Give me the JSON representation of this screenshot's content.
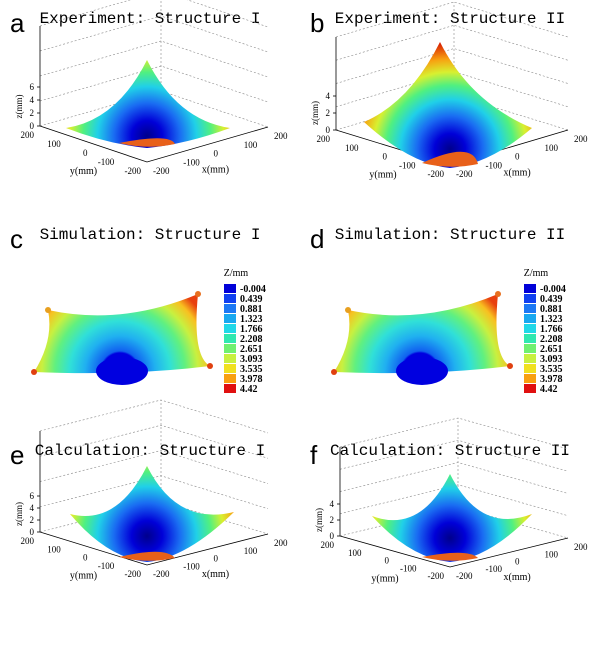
{
  "figure": {
    "panels": [
      {
        "letter": "a",
        "title": "Experiment: Structure I",
        "kind": "plot3d",
        "zlabel": "z(mm)",
        "ylabel": "y(mm)",
        "xlabel": "x(mm)",
        "zticks": [
          "0",
          "2",
          "4",
          "6"
        ],
        "yticks": [
          "200",
          "100",
          "0",
          "-100",
          "-200"
        ],
        "xticks": [
          "-200",
          "-100",
          "0",
          "100",
          "200"
        ]
      },
      {
        "letter": "b",
        "title": "Experiment: Structure II",
        "kind": "plot3d",
        "zlabel": "z(mm)",
        "ylabel": "y(mm)",
        "xlabel": "x(mm)",
        "zticks": [
          "0",
          "2",
          "4"
        ],
        "yticks": [
          "200",
          "100",
          "0",
          "-100",
          "-200"
        ],
        "xticks": [
          "-200",
          "-100",
          "0",
          "100",
          "200"
        ]
      },
      {
        "letter": "c",
        "title": "Simulation: Structure I",
        "kind": "sim"
      },
      {
        "letter": "d",
        "title": "Simulation: Structure II",
        "kind": "sim"
      },
      {
        "letter": "e",
        "title": "Calculation: Structure I",
        "kind": "plot3d",
        "zlabel": "z(mm)",
        "ylabel": "y(mm)",
        "xlabel": "x(mm)",
        "zticks": [
          "0",
          "2",
          "4",
          "6"
        ],
        "yticks": [
          "200",
          "100",
          "0",
          "-100",
          "-200"
        ],
        "xticks": [
          "-200",
          "-100",
          "0",
          "100",
          "200"
        ]
      },
      {
        "letter": "f",
        "title": "Calculation: Structure II",
        "kind": "plot3d",
        "zlabel": "z(mm)",
        "ylabel": "y(mm)",
        "xlabel": "x(mm)",
        "zticks": [
          "0",
          "2",
          "4"
        ],
        "yticks": [
          "200",
          "100",
          "0",
          "-100",
          "-200"
        ],
        "xticks": [
          "-200",
          "-100",
          "0",
          "100",
          "200"
        ]
      }
    ],
    "colorbar": {
      "title": "Z/mm",
      "values": [
        "-0.004",
        "0.439",
        "0.881",
        "1.323",
        "1.766",
        "2.208",
        "2.651",
        "3.093",
        "3.535",
        "3.978",
        "4.42"
      ],
      "colors": [
        "#0000d8",
        "#1040f0",
        "#1c78f4",
        "#18a8f0",
        "#20d8e8",
        "#30e8b0",
        "#70f070",
        "#c8f040",
        "#f0e020",
        "#f8a010",
        "#e01010"
      ]
    }
  }
}
